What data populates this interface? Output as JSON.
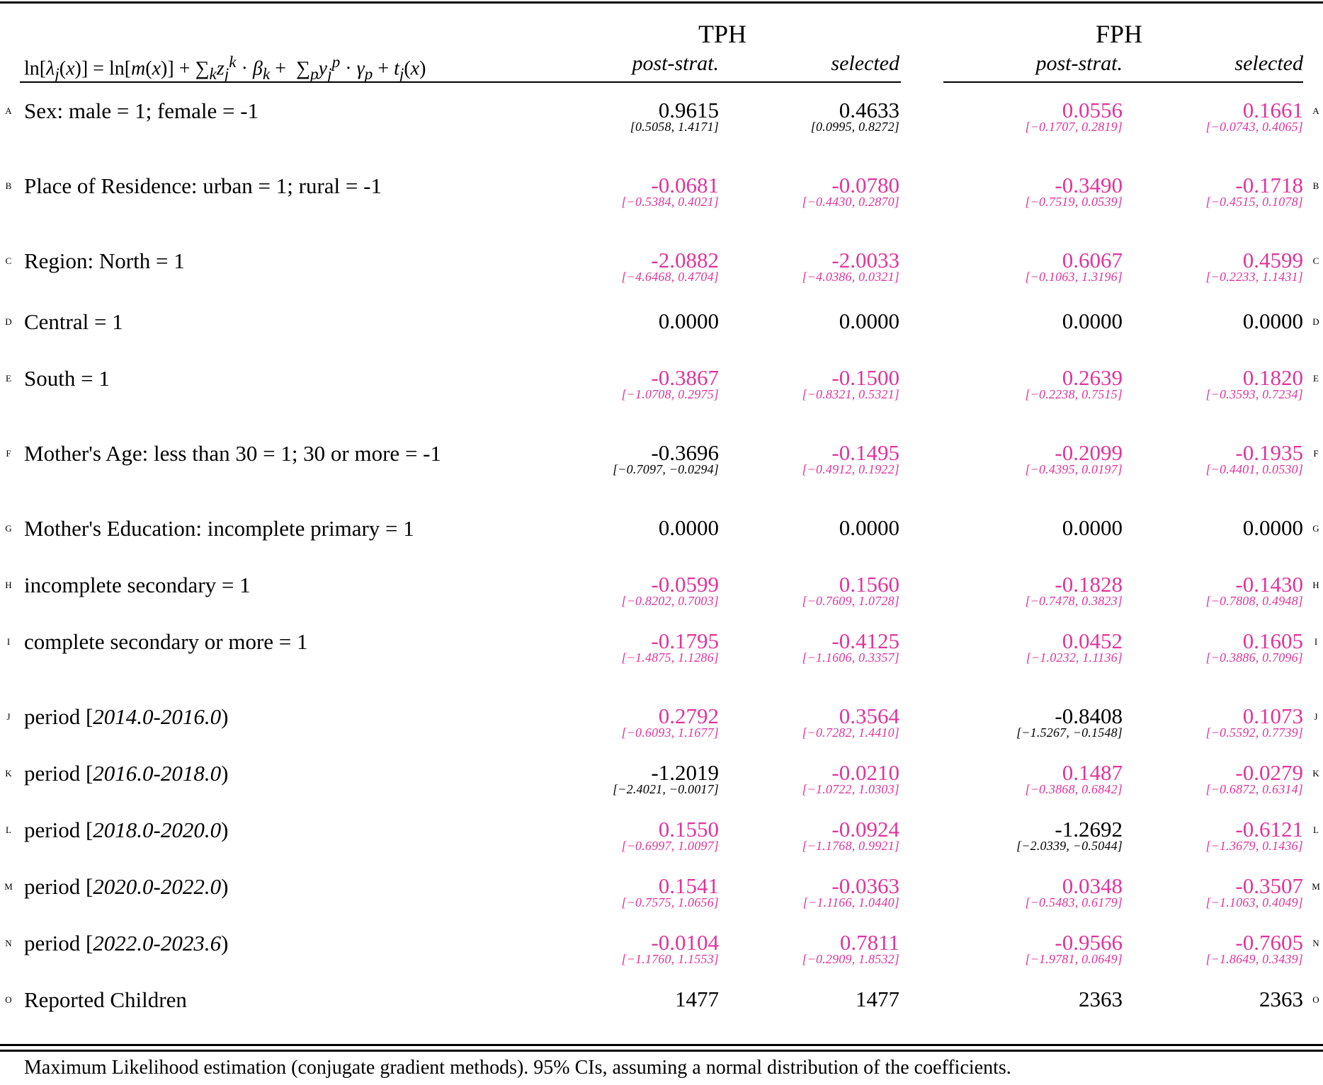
{
  "header": {
    "groups": [
      {
        "label": "TPH",
        "columns": [
          "post-strat.",
          "selected"
        ]
      },
      {
        "label": "FPH",
        "columns": [
          "post-strat.",
          "selected"
        ]
      }
    ]
  },
  "rows": [
    {
      "letter": "A",
      "label": "Sex: male = 1; female = -1",
      "cells": [
        {
          "est": "0.9615",
          "ci": "[0.5058, 1.4171]",
          "color": "#000000"
        },
        {
          "est": "0.4633",
          "ci": "[0.0995, 0.8272]",
          "color": "#000000"
        },
        {
          "est": "0.0556",
          "ci": "[−0.1707, 0.2819]",
          "color": "#e0359c"
        },
        {
          "est": "0.1661",
          "ci": "[−0.0743, 0.4065]",
          "color": "#e0359c"
        }
      ]
    },
    {
      "letter": "B",
      "label": "Place of Residence: urban = 1; rural = -1",
      "cells": [
        {
          "est": "-0.0681",
          "ci": "[−0.5384, 0.4021]",
          "color": "#e0359c"
        },
        {
          "est": "-0.0780",
          "ci": "[−0.4430, 0.2870]",
          "color": "#e0359c"
        },
        {
          "est": "-0.3490",
          "ci": "[−0.7519, 0.0539]",
          "color": "#e0359c"
        },
        {
          "est": "-0.1718",
          "ci": "[−0.4515, 0.1078]",
          "color": "#e0359c"
        }
      ]
    },
    {
      "letter": "C",
      "label": "Region: North = 1",
      "cells": [
        {
          "est": "-2.0882",
          "ci": "[−4.6468, 0.4704]",
          "color": "#e0359c"
        },
        {
          "est": "-2.0033",
          "ci": "[−4.0386, 0.0321]",
          "color": "#e0359c"
        },
        {
          "est": "0.6067",
          "ci": "[−0.1063, 1.3196]",
          "color": "#e0359c"
        },
        {
          "est": "0.4599",
          "ci": "[−0.2233, 1.1431]",
          "color": "#e0359c"
        }
      ]
    },
    {
      "letter": "D",
      "label": "Central = 1",
      "cells": [
        {
          "est": "0.0000",
          "ci": "",
          "color": "#000000"
        },
        {
          "est": "0.0000",
          "ci": "",
          "color": "#000000"
        },
        {
          "est": "0.0000",
          "ci": "",
          "color": "#000000"
        },
        {
          "est": "0.0000",
          "ci": "",
          "color": "#000000"
        }
      ]
    },
    {
      "letter": "E",
      "label": "South = 1",
      "cells": [
        {
          "est": "-0.3867",
          "ci": "[−1.0708, 0.2975]",
          "color": "#e0359c"
        },
        {
          "est": "-0.1500",
          "ci": "[−0.8321, 0.5321]",
          "color": "#e0359c"
        },
        {
          "est": "0.2639",
          "ci": "[−0.2238, 0.7515]",
          "color": "#e0359c"
        },
        {
          "est": "0.1820",
          "ci": "[−0.3593, 0.7234]",
          "color": "#e0359c"
        }
      ]
    },
    {
      "letter": "F",
      "label": "Mother's Age: less than 30 = 1; 30 or more = -1",
      "cells": [
        {
          "est": "-0.3696",
          "ci": "[−0.7097, −0.0294]",
          "color": "#000000"
        },
        {
          "est": "-0.1495",
          "ci": "[−0.4912, 0.1922]",
          "color": "#e0359c"
        },
        {
          "est": "-0.2099",
          "ci": "[−0.4395, 0.0197]",
          "color": "#e0359c"
        },
        {
          "est": "-0.1935",
          "ci": "[−0.4401, 0.0530]",
          "color": "#e0359c"
        }
      ]
    },
    {
      "letter": "G",
      "label": "Mother's Education: incomplete primary = 1",
      "cells": [
        {
          "est": "0.0000",
          "ci": "",
          "color": "#000000"
        },
        {
          "est": "0.0000",
          "ci": "",
          "color": "#000000"
        },
        {
          "est": "0.0000",
          "ci": "",
          "color": "#000000"
        },
        {
          "est": "0.0000",
          "ci": "",
          "color": "#000000"
        }
      ]
    },
    {
      "letter": "H",
      "label": "incomplete secondary = 1",
      "cells": [
        {
          "est": "-0.0599",
          "ci": "[−0.8202, 0.7003]",
          "color": "#e0359c"
        },
        {
          "est": "0.1560",
          "ci": "[−0.7609, 1.0728]",
          "color": "#e0359c"
        },
        {
          "est": "-0.1828",
          "ci": "[−0.7478, 0.3823]",
          "color": "#e0359c"
        },
        {
          "est": "-0.1430",
          "ci": "[−0.7808, 0.4948]",
          "color": "#e0359c"
        }
      ]
    },
    {
      "letter": "I",
      "label": "complete secondary or more = 1",
      "cells": [
        {
          "est": "-0.1795",
          "ci": "[−1.4875, 1.1286]",
          "color": "#e0359c"
        },
        {
          "est": "-0.4125",
          "ci": "[−1.1606, 0.3357]",
          "color": "#e0359c"
        },
        {
          "est": "0.0452",
          "ci": "[−1.0232, 1.1136]",
          "color": "#e0359c"
        },
        {
          "est": "0.1605",
          "ci": "[−0.3886, 0.7096]",
          "color": "#e0359c"
        }
      ]
    },
    {
      "letter": "J",
      "label_pre": "period [",
      "label_it": "2014.0-2016.0",
      "label_post": ")",
      "cells": [
        {
          "est": "0.2792",
          "ci": "[−0.6093, 1.1677]",
          "color": "#e0359c"
        },
        {
          "est": "0.3564",
          "ci": "[−0.7282, 1.4410]",
          "color": "#e0359c"
        },
        {
          "est": "-0.8408",
          "ci": "[−1.5267, −0.1548]",
          "color": "#000000"
        },
        {
          "est": "0.1073",
          "ci": "[−0.5592, 0.7739]",
          "color": "#e0359c"
        }
      ]
    },
    {
      "letter": "K",
      "label_pre": "period [",
      "label_it": "2016.0-2018.0",
      "label_post": ")",
      "cells": [
        {
          "est": "-1.2019",
          "ci": "[−2.4021, −0.0017]",
          "color": "#000000"
        },
        {
          "est": "-0.0210",
          "ci": "[−1.0722, 1.0303]",
          "color": "#e0359c"
        },
        {
          "est": "0.1487",
          "ci": "[−0.3868, 0.6842]",
          "color": "#e0359c"
        },
        {
          "est": "-0.0279",
          "ci": "[−0.6872, 0.6314]",
          "color": "#e0359c"
        }
      ]
    },
    {
      "letter": "L",
      "label_pre": "period [",
      "label_it": "2018.0-2020.0",
      "label_post": ")",
      "cells": [
        {
          "est": "0.1550",
          "ci": "[−0.6997, 1.0097]",
          "color": "#e0359c"
        },
        {
          "est": "-0.0924",
          "ci": "[−1.1768, 0.9921]",
          "color": "#e0359c"
        },
        {
          "est": "-1.2692",
          "ci": "[−2.0339, −0.5044]",
          "color": "#000000"
        },
        {
          "est": "-0.6121",
          "ci": "[−1.3679, 0.1436]",
          "color": "#e0359c"
        }
      ]
    },
    {
      "letter": "M",
      "label_pre": "period [",
      "label_it": "2020.0-2022.0",
      "label_post": ")",
      "cells": [
        {
          "est": "0.1541",
          "ci": "[−0.7575, 1.0656]",
          "color": "#e0359c"
        },
        {
          "est": "-0.0363",
          "ci": "[−1.1166, 1.0440]",
          "color": "#e0359c"
        },
        {
          "est": "0.0348",
          "ci": "[−0.5483, 0.6179]",
          "color": "#e0359c"
        },
        {
          "est": "-0.3507",
          "ci": "[−1.1063, 0.4049]",
          "color": "#e0359c"
        }
      ]
    },
    {
      "letter": "N",
      "label_pre": "period [",
      "label_it": "2022.0-2023.6",
      "label_post": ")",
      "cells": [
        {
          "est": "-0.0104",
          "ci": "[−1.1760, 1.1553]",
          "color": "#e0359c"
        },
        {
          "est": "0.7811",
          "ci": "[−0.2909, 1.8532]",
          "color": "#e0359c"
        },
        {
          "est": "-0.9566",
          "ci": "[−1.9781, 0.0649]",
          "color": "#e0359c"
        },
        {
          "est": "-0.7605",
          "ci": "[−1.8649, 0.3439]",
          "color": "#e0359c"
        }
      ]
    },
    {
      "letter": "O",
      "label": "Reported Children",
      "cells": [
        {
          "est": "1477",
          "ci": "",
          "color": "#000000"
        },
        {
          "est": "1477",
          "ci": "",
          "color": "#000000"
        },
        {
          "est": "2363",
          "ci": "",
          "color": "#000000"
        },
        {
          "est": "2363",
          "ci": "",
          "color": "#000000"
        }
      ]
    }
  ],
  "footnote": "Maximum Likelihood estimation (conjugate gradient methods). 95% CIs, assuming a normal distribution of the coefficients.",
  "colors": {
    "significant": "#000000",
    "non_significant": "#e0359c"
  }
}
